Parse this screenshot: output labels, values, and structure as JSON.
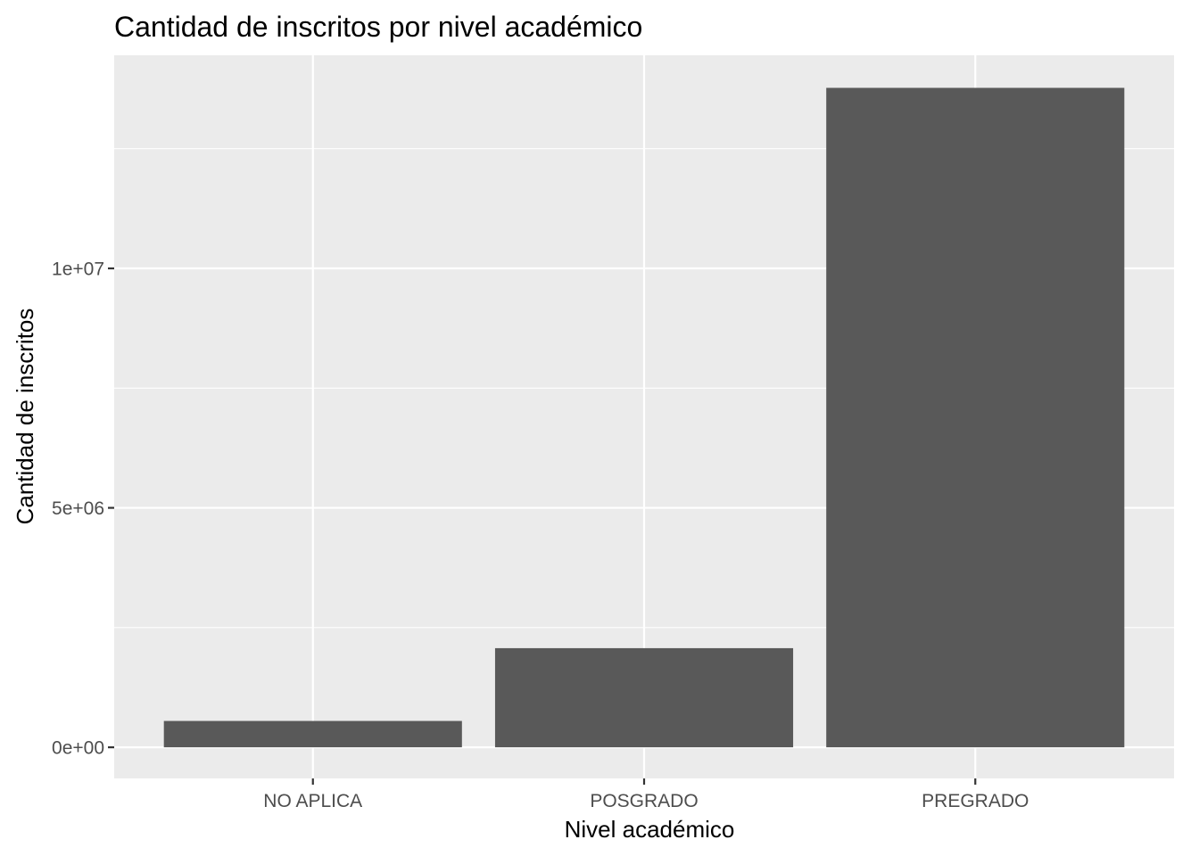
{
  "chart_data": {
    "type": "bar",
    "title": "Cantidad de inscritos por nivel académico",
    "xlabel": "Nivel académico",
    "ylabel": "Cantidad de inscritos",
    "categories": [
      "NO APLICA",
      "POSGRADO",
      "PREGRADO"
    ],
    "values": [
      550000,
      2070000,
      13770000
    ],
    "ylim": [
      -650000,
      14450000
    ],
    "yticks": [
      0,
      5000000,
      10000000
    ],
    "ytick_labels": [
      "0e+00",
      "5e+06",
      "1e+07"
    ],
    "grid": true,
    "legend": "none",
    "colors": {
      "panel": "#EBEBEB",
      "bar": "#595959",
      "grid": "#FFFFFF",
      "tick_text": "#4D4D4D",
      "tick_mark": "#333333"
    }
  }
}
